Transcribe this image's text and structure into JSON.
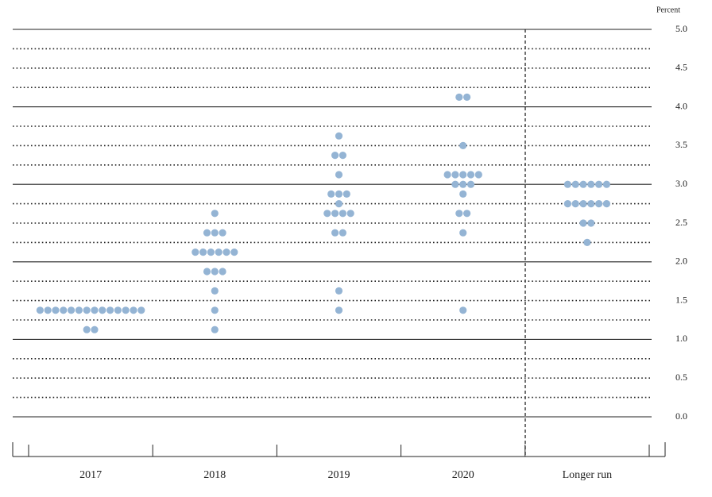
{
  "chart_data": {
    "type": "dot",
    "ylabel": "Percent",
    "categories": [
      "2017",
      "2018",
      "2019",
      "2020",
      "Longer run"
    ],
    "values": [
      [
        1.375,
        1.375,
        1.375,
        1.375,
        1.375,
        1.375,
        1.375,
        1.375,
        1.375,
        1.375,
        1.375,
        1.375,
        1.375,
        1.375,
        1.125,
        1.125
      ],
      [
        2.625,
        2.375,
        2.375,
        2.375,
        2.125,
        2.125,
        2.125,
        2.125,
        2.125,
        2.125,
        1.875,
        1.875,
        1.875,
        1.625,
        1.375,
        1.125
      ],
      [
        3.625,
        3.375,
        3.375,
        3.125,
        2.875,
        2.875,
        2.875,
        2.75,
        2.625,
        2.625,
        2.625,
        2.625,
        2.375,
        2.375,
        1.625,
        1.375
      ],
      [
        4.125,
        4.125,
        3.5,
        3.125,
        3.125,
        3.125,
        3.125,
        3.125,
        3.0,
        3.0,
        3.0,
        2.875,
        2.625,
        2.625,
        2.375,
        1.375
      ],
      [
        3.0,
        3.0,
        3.0,
        3.0,
        3.0,
        3.0,
        2.75,
        2.75,
        2.75,
        2.75,
        2.75,
        2.75,
        2.5,
        2.5,
        2.25
      ]
    ],
    "color": "#94b4d4",
    "ylim": [
      0,
      5
    ],
    "yticks": [
      {
        "value": 0,
        "label": "0.0"
      },
      {
        "value": 0.5,
        "label": "0.5"
      },
      {
        "value": 1,
        "label": "1.0"
      },
      {
        "value": 1.5,
        "label": "1.5"
      },
      {
        "value": 2,
        "label": "2.0"
      },
      {
        "value": 2.5,
        "label": "2.5"
      },
      {
        "value": 3,
        "label": "3.0"
      },
      {
        "value": 3.5,
        "label": "3.5"
      },
      {
        "value": 4,
        "label": "4.0"
      },
      {
        "value": 4.5,
        "label": "4.5"
      },
      {
        "value": 5,
        "label": "5.0"
      }
    ],
    "minor_yticks": [
      0.25,
      0.75,
      1.25,
      1.75,
      2.25,
      2.75,
      3.25,
      3.75,
      4.25,
      4.75
    ],
    "grid": true
  }
}
